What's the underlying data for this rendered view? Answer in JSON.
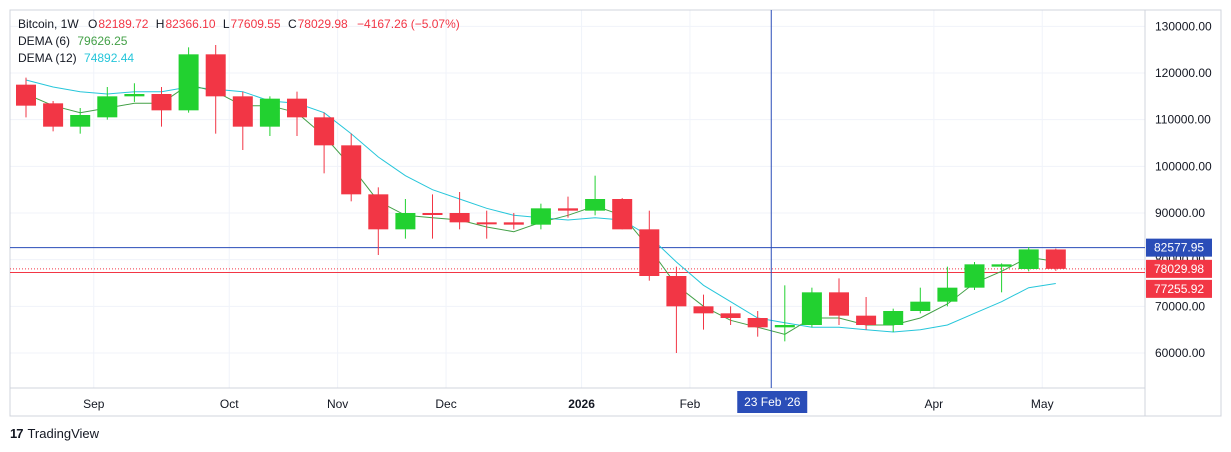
{
  "legend": {
    "symbol": "Bitcoin, 1W",
    "o_label": "O",
    "o_value": "82189.72",
    "h_label": "H",
    "h_value": "82366.10",
    "l_label": "L",
    "l_value": "77609.55",
    "c_label": "C",
    "c_value": "78029.98",
    "change": "−4167.26 (−5.07%)",
    "dema6_label": "DEMA (6)",
    "dema6_value": "79626.25",
    "dema12_label": "DEMA (12)",
    "dema12_value": "74892.44"
  },
  "brand": {
    "logo": "17",
    "name": "TradingView"
  },
  "colors": {
    "up": "#22d130",
    "down": "#f23645",
    "dema6": "#43a047",
    "dema12": "#26c6da",
    "crosshair": "#2a4db8",
    "grid": "#f0f3fa",
    "axis_text": "#131722"
  },
  "chart_data": {
    "type": "candlestick",
    "timeframe": "1W",
    "y_axis": {
      "ticks": [
        60000,
        70000,
        80000,
        90000,
        100000,
        110000,
        120000,
        130000
      ],
      "tick_labels": [
        "60000.00",
        "70000.00",
        "80000.00",
        "90000.00",
        "100000.00",
        "110000.00",
        "120000.00",
        "130000.00"
      ],
      "ylim": [
        52500,
        133500
      ]
    },
    "x_axis": {
      "labels": [
        "Sep",
        "Oct",
        "Nov",
        "Dec",
        "2026",
        "Feb",
        "Apr",
        "May"
      ],
      "label_candle_index": [
        2.5,
        7.5,
        11.5,
        15.5,
        20.5,
        24.5,
        33.5,
        37.5
      ],
      "bold_labels": [
        "2026"
      ]
    },
    "candles": [
      {
        "o": 117500,
        "h": 119000,
        "l": 110500,
        "c": 113000
      },
      {
        "o": 113500,
        "h": 114000,
        "l": 107500,
        "c": 108500
      },
      {
        "o": 108500,
        "h": 112500,
        "l": 107000,
        "c": 111000
      },
      {
        "o": 110500,
        "h": 117000,
        "l": 110000,
        "c": 115000
      },
      {
        "o": 115000,
        "h": 117800,
        "l": 113800,
        "c": 115500
      },
      {
        "o": 115500,
        "h": 117000,
        "l": 108500,
        "c": 112000
      },
      {
        "o": 112000,
        "h": 125500,
        "l": 111500,
        "c": 124000
      },
      {
        "o": 124000,
        "h": 126000,
        "l": 107000,
        "c": 115000
      },
      {
        "o": 115000,
        "h": 116000,
        "l": 103500,
        "c": 108500
      },
      {
        "o": 108500,
        "h": 115000,
        "l": 106500,
        "c": 114500
      },
      {
        "o": 114500,
        "h": 116000,
        "l": 106500,
        "c": 110500
      },
      {
        "o": 110500,
        "h": 111500,
        "l": 98500,
        "c": 104500
      },
      {
        "o": 104500,
        "h": 107000,
        "l": 92500,
        "c": 94000
      },
      {
        "o": 94000,
        "h": 95500,
        "l": 81000,
        "c": 86500
      },
      {
        "o": 86500,
        "h": 93000,
        "l": 84500,
        "c": 90000
      },
      {
        "o": 90000,
        "h": 94000,
        "l": 84500,
        "c": 89800
      },
      {
        "o": 90000,
        "h": 94500,
        "l": 86500,
        "c": 88000
      },
      {
        "o": 88000,
        "h": 90500,
        "l": 84500,
        "c": 87800
      },
      {
        "o": 88000,
        "h": 90000,
        "l": 86500,
        "c": 87500
      },
      {
        "o": 87500,
        "h": 92000,
        "l": 86500,
        "c": 91000
      },
      {
        "o": 91000,
        "h": 93500,
        "l": 89000,
        "c": 90500
      },
      {
        "o": 90500,
        "h": 98000,
        "l": 89500,
        "c": 93000
      },
      {
        "o": 93000,
        "h": 93200,
        "l": 86500,
        "c": 86500
      },
      {
        "o": 86500,
        "h": 90500,
        "l": 75500,
        "c": 76500
      },
      {
        "o": 76500,
        "h": 78500,
        "l": 60000,
        "c": 70000
      },
      {
        "o": 70000,
        "h": 72500,
        "l": 65000,
        "c": 68500
      },
      {
        "o": 68500,
        "h": 70000,
        "l": 66000,
        "c": 67500
      },
      {
        "o": 67500,
        "h": 69000,
        "l": 63500,
        "c": 65500
      },
      {
        "o": 65500,
        "h": 74500,
        "l": 62500,
        "c": 66000
      },
      {
        "o": 66000,
        "h": 74000,
        "l": 65500,
        "c": 73000
      },
      {
        "o": 73000,
        "h": 76000,
        "l": 66000,
        "c": 68000
      },
      {
        "o": 68000,
        "h": 72000,
        "l": 65000,
        "c": 66000
      },
      {
        "o": 66000,
        "h": 69500,
        "l": 64500,
        "c": 69000
      },
      {
        "o": 69000,
        "h": 74000,
        "l": 68500,
        "c": 71000
      },
      {
        "o": 71000,
        "h": 78500,
        "l": 70000,
        "c": 74000
      },
      {
        "o": 74000,
        "h": 79500,
        "l": 73500,
        "c": 79000
      },
      {
        "o": 78500,
        "h": 79200,
        "l": 73000,
        "c": 79000
      },
      {
        "o": 78000,
        "h": 82700,
        "l": 77500,
        "c": 82200
      },
      {
        "o": 82189.72,
        "h": 82366.1,
        "l": 77609.55,
        "c": 78029.98
      }
    ],
    "series": [
      {
        "name": "DEMA (6)",
        "values": [
          115500,
          113000,
          111500,
          112500,
          113500,
          113500,
          117500,
          116000,
          113000,
          113000,
          111500,
          106500,
          100000,
          92500,
          89500,
          89000,
          88500,
          87000,
          86000,
          88000,
          89500,
          91500,
          89500,
          82500,
          74500,
          70000,
          67000,
          65500,
          64000,
          67500,
          67500,
          66000,
          66000,
          67500,
          70500,
          75000,
          77500,
          80500,
          79600
        ]
      },
      {
        "name": "DEMA (12)",
        "values": [
          118500,
          117000,
          116000,
          115500,
          116000,
          116000,
          117000,
          116500,
          116000,
          114000,
          113500,
          111500,
          107000,
          102000,
          98000,
          95000,
          93000,
          91000,
          89500,
          89000,
          88500,
          89000,
          88500,
          85000,
          79500,
          74500,
          71000,
          67500,
          66500,
          65500,
          65500,
          65000,
          64500,
          65000,
          66000,
          68500,
          71000,
          74000,
          74900
        ]
      }
    ],
    "price_labels": [
      {
        "value": 82577.95,
        "text": "82577.95",
        "kind": "crosshair"
      },
      {
        "value": 78029.98,
        "text": "78029.98",
        "kind": "last"
      },
      {
        "value": 77255.92,
        "text": "77255.92",
        "kind": "line"
      }
    ],
    "crosshair": {
      "x_label": "23 Feb '26",
      "candle_index": 27.5,
      "price": 82577.95
    },
    "grid": true
  }
}
